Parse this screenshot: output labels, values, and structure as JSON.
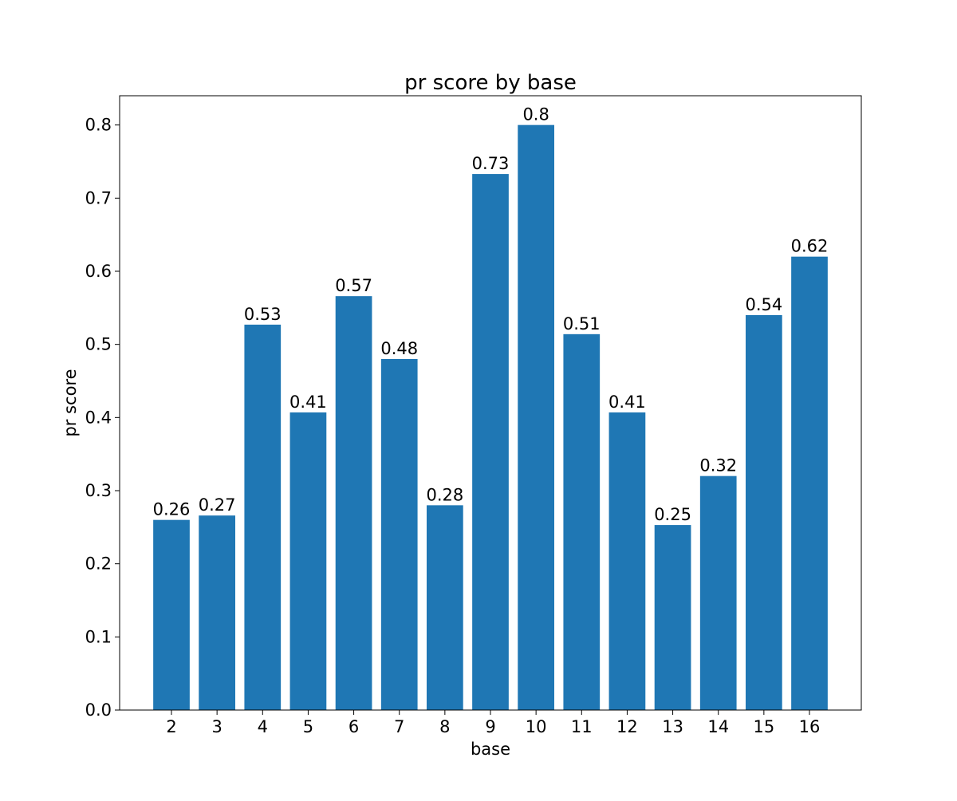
{
  "chart_data": {
    "type": "bar",
    "title": "pr score by base",
    "xlabel": "base",
    "ylabel": "pr score",
    "categories": [
      "2",
      "3",
      "4",
      "5",
      "6",
      "7",
      "8",
      "9",
      "10",
      "11",
      "12",
      "13",
      "14",
      "15",
      "16"
    ],
    "values": [
      0.26,
      0.266,
      0.527,
      0.407,
      0.566,
      0.48,
      0.28,
      0.733,
      0.8,
      0.514,
      0.407,
      0.253,
      0.32,
      0.54,
      0.62
    ],
    "data_labels": [
      "0.26",
      "0.27",
      "0.53",
      "0.41",
      "0.57",
      "0.48",
      "0.28",
      "0.73",
      "0.8",
      "0.51",
      "0.41",
      "0.25",
      "0.32",
      "0.54",
      "0.62"
    ],
    "ylim": [
      0.0,
      0.84
    ],
    "yticks": [
      0.0,
      0.1,
      0.2,
      0.3,
      0.4,
      0.5,
      0.6,
      0.7,
      0.8
    ],
    "ytick_labels": [
      "0.0",
      "0.1",
      "0.2",
      "0.3",
      "0.4",
      "0.5",
      "0.6",
      "0.7",
      "0.8"
    ],
    "grid": false,
    "bar_color": "#1f77b4"
  }
}
